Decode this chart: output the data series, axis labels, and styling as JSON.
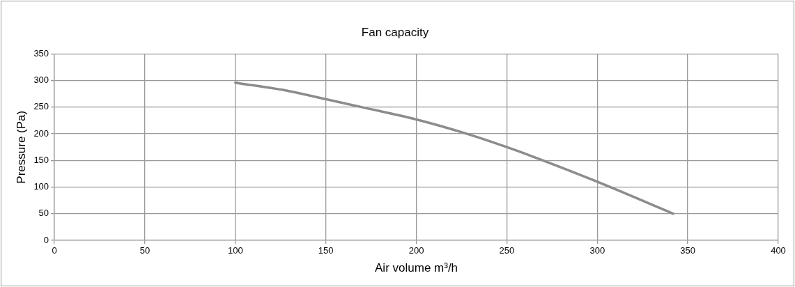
{
  "chart_data": {
    "type": "line",
    "title": "Fan capacity",
    "xlabel": "Air volume m³/h",
    "ylabel": "Pressure (Pa)",
    "x": [
      100,
      130,
      150,
      170,
      200,
      228,
      250,
      270,
      300,
      342
    ],
    "series": [
      {
        "color": "#8c8c8c",
        "values": [
          296,
          280,
          265,
          250,
          227,
          200,
          175,
          150,
          110,
          50
        ]
      }
    ],
    "xlim": [
      0,
      400
    ],
    "xticks": [
      0,
      50,
      100,
      150,
      200,
      250,
      300,
      350,
      400
    ],
    "ylim": [
      0,
      350
    ],
    "yticks": [
      0,
      50,
      100,
      150,
      200,
      250,
      300,
      350
    ],
    "grid": true,
    "legend": false,
    "marker": "none",
    "line_style": "solid"
  }
}
